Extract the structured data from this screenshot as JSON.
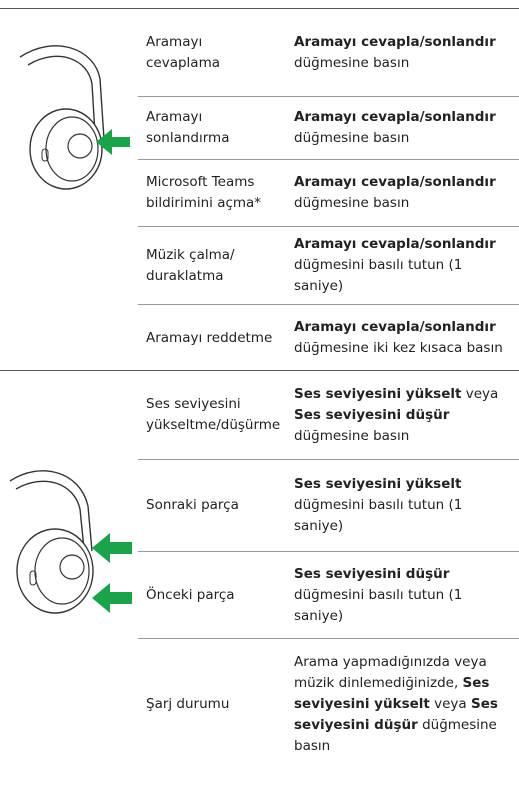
{
  "groups": [
    {
      "rows": [
        {
          "action": "Aramayı cevaplama",
          "instruction": [
            {
              "text": "Aramayı cevapla/sonlandır",
              "bold": true
            },
            {
              "text": "düğmesine basın",
              "bold": false
            }
          ]
        },
        {
          "action": "Aramayı sonlandırma",
          "instruction": [
            {
              "text": "Aramayı cevapla/sonlandır",
              "bold": true
            },
            {
              "text": "düğmesine basın",
              "bold": false
            }
          ]
        },
        {
          "action": "Microsoft Teams bildirimini açma*",
          "instruction": [
            {
              "text": "Aramayı cevapla/sonlandır",
              "bold": true
            },
            {
              "text": "düğmesine basın",
              "bold": false
            }
          ]
        },
        {
          "action": "Müzik çalma/ duraklatma",
          "instruction": [
            {
              "text": "Aramayı cevapla/sonlandır",
              "bold": true
            },
            {
              "text": "düğmesini basılı tutun (1 saniye)",
              "bold": false
            }
          ]
        },
        {
          "action": "Aramayı reddetme",
          "instruction": [
            {
              "text": "Aramayı cevapla/sonlandır",
              "bold": true
            },
            {
              "text": "düğmesine iki kez kısaca basın",
              "bold": false
            }
          ]
        }
      ]
    },
    {
      "rows": [
        {
          "action": "Ses seviyesini yükseltme/düşürme",
          "instruction": [
            {
              "text": "Ses seviyesini yükselt",
              "bold": true
            },
            {
              "text": "veya",
              "bold": false
            },
            {
              "text": "Ses seviyesini düşür",
              "bold": true
            },
            {
              "text": "düğmesine basın",
              "bold": false
            }
          ]
        },
        {
          "action": "Sonraki parça",
          "instruction": [
            {
              "text": "Ses seviyesini yükselt",
              "bold": true
            },
            {
              "text": "düğmesini basılı tutun (1 saniye)",
              "bold": false
            }
          ]
        },
        {
          "action": "Önceki parça",
          "instruction": [
            {
              "text": "Ses seviyesini düşür",
              "bold": true
            },
            {
              "text": "düğmesini basılı tutun (1 saniye)",
              "bold": false
            }
          ]
        },
        {
          "action": "Şarj durumu",
          "instruction": [
            {
              "text": "Arama yapmadığınızda veya müzik dinlemediğinizde,",
              "bold": false
            },
            {
              "text": "Ses seviyesini yükselt",
              "bold": true
            },
            {
              "text": "veya",
              "bold": false
            },
            {
              "text": "Ses seviyesini düşür",
              "bold": true
            },
            {
              "text": "düğmesine basın",
              "bold": false
            }
          ]
        }
      ]
    }
  ]
}
